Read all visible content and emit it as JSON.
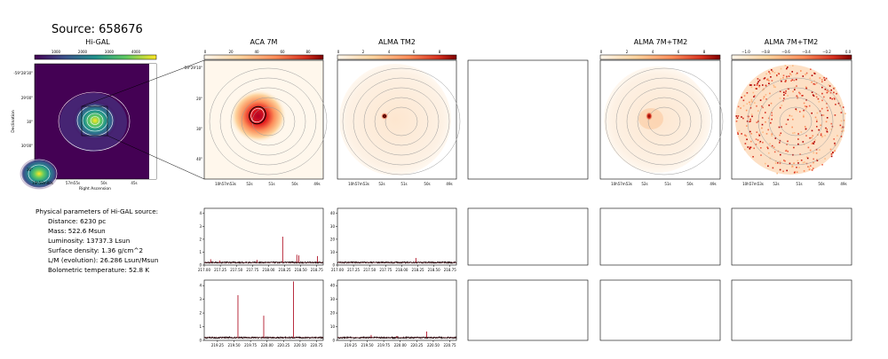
{
  "source_title": "Source: 658676",
  "params": {
    "heading": "Physical parameters of Hi-GAL source:",
    "lines": [
      "Distance: 6230 pc",
      "Mass: 522.6 Msun",
      "Luminosity: 13737.3 Lsun",
      "Surface density: 1.36 g/cm^2",
      "L/M (evolution): 26.286 Lsun/Msun",
      "Bolometric temperature: 52.8 K"
    ]
  },
  "colors": {
    "cmap_hot": [
      "#fff5eb",
      "#fdd0a2",
      "#fd8d3c",
      "#d94801",
      "#7f2704"
    ],
    "spectrum": "#b2182b",
    "contour": "#9a9a9a"
  },
  "chart_data": [
    {
      "type": "heatmap",
      "title": "Hi-GAL",
      "colorbar_ticks": [
        "1000",
        "2000",
        "3000",
        "4000"
      ],
      "colormap": "viridis",
      "xlabel": "Right Ascension",
      "ylabel": "Declination",
      "xticks": [
        "10h58m00s",
        "57m55s",
        "50s",
        "45s"
      ],
      "yticks": [
        "-59°28'30\"",
        "29'00\"",
        "30\"",
        "30'00\"",
        "30\""
      ]
    },
    {
      "type": "heatmap",
      "title": "ACA 7M",
      "colorbar_ticks": [
        "0",
        "20",
        "40",
        "60",
        "80"
      ],
      "xticks": [
        "10h57m53s",
        "52s",
        "51s",
        "50s",
        "49s"
      ],
      "yticks": [
        "-59°29'10\"",
        "20\"",
        "30\"",
        "40\""
      ]
    },
    {
      "type": "heatmap",
      "title": "ALMA TM2",
      "colorbar_ticks": [
        "0",
        "2",
        "4",
        "6",
        "8"
      ],
      "xticks": [
        "10h57m53s",
        "52s",
        "51s",
        "50s",
        "49s"
      ]
    },
    {
      "type": "heatmap",
      "title": "ALMA 7M+TM2",
      "colorbar_ticks": [
        "0",
        "2",
        "4",
        "6",
        "8"
      ],
      "xticks": [
        "10h57m53s",
        "52s",
        "51s",
        "50s",
        "49s"
      ]
    },
    {
      "type": "heatmap",
      "title": "ALMA 7M+TM2",
      "colorbar_ticks": [
        "−1.0",
        "−0.8",
        "−0.6",
        "−0.4",
        "−0.2",
        "0.0"
      ],
      "xticks": [
        "10h57m53s",
        "52s",
        "51s",
        "50s",
        "49s"
      ]
    },
    {
      "type": "line",
      "panel": "ACA 7M upper spectrum",
      "xlim": [
        217.0,
        218.85
      ],
      "ylim": [
        -0.2,
        4.2
      ],
      "xticks": [
        "217.00",
        "217.25",
        "217.50",
        "217.75",
        "218.00",
        "218.25",
        "218.50",
        "218.75"
      ],
      "yticks": [
        "0",
        "1",
        "2",
        "3",
        "4"
      ],
      "peaks": [
        {
          "x": 217.1,
          "y": 0.25
        },
        {
          "x": 217.24,
          "y": 0.15
        },
        {
          "x": 217.82,
          "y": 0.2
        },
        {
          "x": 218.22,
          "y": 2.0
        },
        {
          "x": 218.44,
          "y": 0.6
        },
        {
          "x": 218.47,
          "y": 0.55
        },
        {
          "x": 218.76,
          "y": 0.5
        }
      ]
    },
    {
      "type": "line",
      "panel": "ALMA TM2 upper spectrum",
      "xlim": [
        217.0,
        218.85
      ],
      "ylim": [
        -2,
        42
      ],
      "xticks": [
        "217.00",
        "217.25",
        "217.50",
        "217.75",
        "218.00",
        "218.25",
        "218.50",
        "218.75"
      ],
      "yticks": [
        "0",
        "10",
        "20",
        "30",
        "40"
      ],
      "peaks": [
        {
          "x": 218.22,
          "y": 3.5
        }
      ]
    },
    {
      "type": "line",
      "panel": "ACA 7M lower spectrum",
      "xlim": [
        219.05,
        220.85
      ],
      "ylim": [
        -0.2,
        4.2
      ],
      "xticks": [
        "219.25",
        "219.50",
        "219.75",
        "220.00",
        "220.25",
        "220.50",
        "220.75"
      ],
      "yticks": [
        "0",
        "1",
        "2",
        "3",
        "4"
      ],
      "peaks": [
        {
          "x": 219.56,
          "y": 3.1
        },
        {
          "x": 219.95,
          "y": 1.6
        },
        {
          "x": 220.4,
          "y": 4.1
        }
      ]
    },
    {
      "type": "line",
      "panel": "ALMA TM2 lower spectrum",
      "xlim": [
        219.05,
        220.85
      ],
      "ylim": [
        -2,
        42
      ],
      "xticks": [
        "219.25",
        "219.50",
        "219.75",
        "220.00",
        "220.25",
        "220.50",
        "220.75"
      ],
      "yticks": [
        "0",
        "10",
        "20",
        "30",
        "40"
      ],
      "peaks": [
        {
          "x": 219.56,
          "y": 2.0
        },
        {
          "x": 219.95,
          "y": 1.2
        },
        {
          "x": 220.4,
          "y": 4.5
        }
      ]
    }
  ]
}
